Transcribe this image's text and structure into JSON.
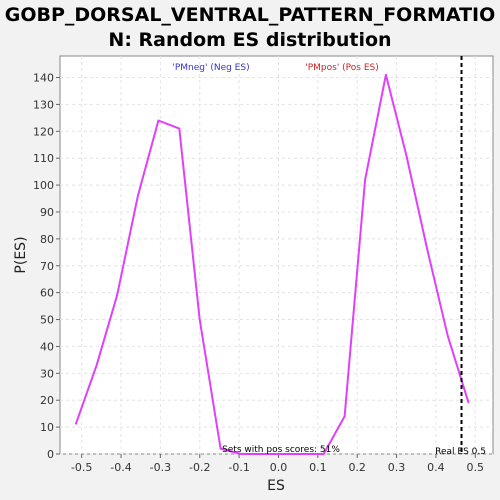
{
  "chart_data": {
    "type": "line",
    "title_line1": "GOBP_DORSAL_VENTRAL_PATTERN_FORMATIO",
    "title_line2": "N: Random ES distribution",
    "xlabel": "ES",
    "ylabel": "P(ES)",
    "xlim": [
      -0.555,
      0.545
    ],
    "ylim": [
      0,
      148
    ],
    "xticks": [
      -0.5,
      -0.4,
      -0.3,
      -0.2,
      -0.1,
      0.0,
      0.1,
      0.2,
      0.3,
      0.4,
      0.5
    ],
    "xtick_labels": [
      "-0.5",
      "-0.4",
      "-0.3",
      "-0.2",
      "-0.1",
      "0.0",
      "0.1",
      "0.2",
      "0.3",
      "0.4",
      "0.5"
    ],
    "yticks": [
      0,
      10,
      20,
      30,
      40,
      50,
      60,
      70,
      80,
      90,
      100,
      110,
      120,
      130,
      140
    ],
    "ytick_labels": [
      "0",
      "10",
      "20",
      "30",
      "40",
      "50",
      "60",
      "70",
      "80",
      "90",
      "100",
      "110",
      "120",
      "130",
      "140"
    ],
    "grid": true,
    "series": [
      {
        "color": "#e040fb",
        "x": [
          -0.515,
          -0.462,
          -0.41,
          -0.357,
          -0.305,
          -0.252,
          -0.2,
          -0.147,
          -0.095,
          -0.042,
          0.01,
          0.063,
          0.115,
          0.168,
          0.22,
          0.273,
          0.325,
          0.378,
          0.43,
          0.483
        ],
        "y": [
          11,
          33,
          59,
          96,
          124,
          121,
          50,
          2,
          0,
          0,
          0,
          0,
          0,
          14,
          102,
          141,
          111,
          76,
          44,
          19
        ]
      }
    ],
    "real_es": 0.465,
    "annotations": {
      "neg_label": "'PMneg' (Neg ES)",
      "neg_color": "#3333cc",
      "pos_label": "'PMpos' (Pos ES)",
      "pos_color": "#cc2222",
      "sets_label": "Sets with pos scores: 51%",
      "real_es_label": "Real ES 0.5"
    }
  }
}
